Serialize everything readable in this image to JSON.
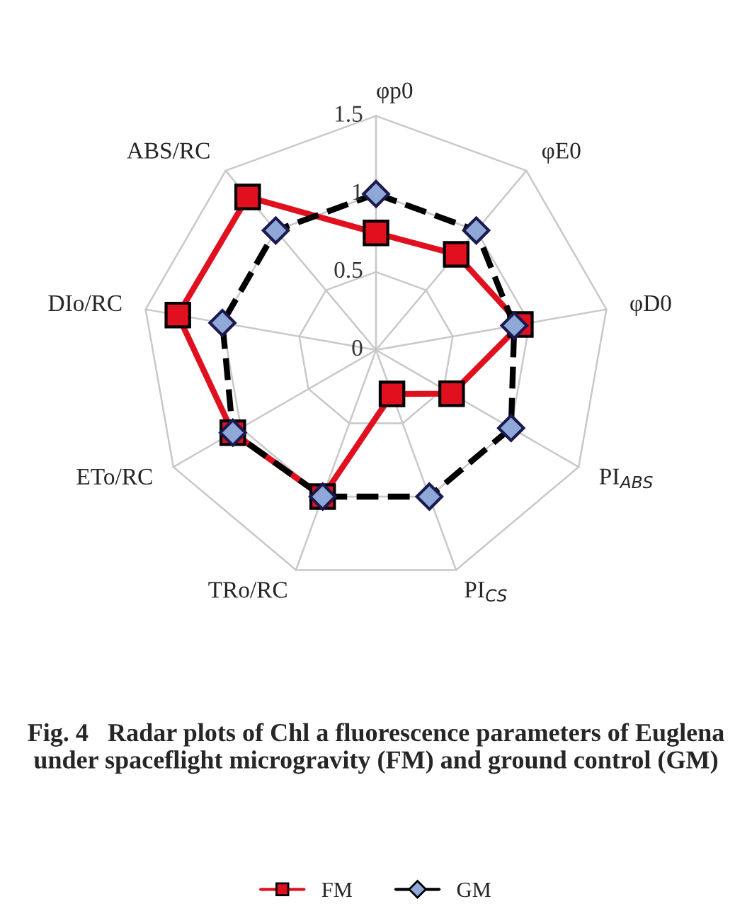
{
  "chart_data": {
    "type": "radar",
    "categories": [
      "φp0",
      "φE0",
      "φD0",
      "PI$_{ABS}$",
      "PI$_{CS}$",
      "TRo/RC",
      "ETo/RC",
      "DIo/RC",
      "ABS/RC"
    ],
    "ylim": [
      0,
      1.5
    ],
    "yticks": [
      0,
      0.5,
      1,
      1.5
    ],
    "grid": true,
    "legend": "bottom",
    "series": [
      {
        "name": "FM",
        "color": "#e0101e",
        "marker": "square",
        "line_style": "solid",
        "values": [
          0.75,
          0.8,
          0.94,
          0.56,
          0.3,
          1.0,
          1.06,
          1.29,
          1.28
        ]
      },
      {
        "name": "GM",
        "color": "#000000",
        "marker": "diamond",
        "line_style": "dashed",
        "values": [
          1.0,
          1.0,
          0.9,
          1.0,
          1.0,
          1.0,
          1.06,
          1.0,
          1.0
        ]
      }
    ],
    "annotations": [
      "Fig. 4   Radar plots of Chl a fluorescence parameters of Euglena under spaceflight microgravity (FM) and ground control (GM)"
    ]
  }
}
